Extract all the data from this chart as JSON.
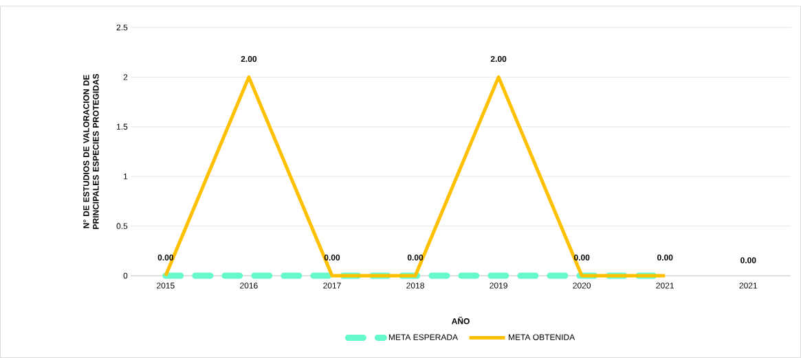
{
  "chart_data": {
    "type": "line",
    "xlabel": "AÑO",
    "ylabel": "N° DE ESTUDIOS DE VALORACION DE PRINCIPALES ESPECIES PROTEGIDAS",
    "categories": [
      "2015",
      "2016",
      "2017",
      "2018",
      "2019",
      "2020",
      "2021",
      "2021"
    ],
    "series": [
      {
        "name": "META ESPERADA",
        "color": "#66f9cc",
        "line_style": "dashed",
        "values": [
          0,
          0,
          0,
          0,
          0,
          0,
          0,
          null
        ]
      },
      {
        "name": "META OBTENIDA",
        "color": "#ffc000",
        "line_style": "solid",
        "values": [
          0,
          2,
          0,
          0,
          2,
          0,
          0,
          null
        ],
        "value_labels": [
          "0.00",
          "2.00",
          "0.00",
          "0.00",
          "2.00",
          "0.00",
          "0.00",
          null
        ]
      }
    ],
    "annotations": [
      "0.00"
    ],
    "ylim": [
      0,
      2.5
    ],
    "yticks": [
      0,
      0.5,
      1,
      1.5,
      2,
      2.5
    ],
    "grid": "y",
    "legend": "bottom",
    "marker": "none"
  }
}
